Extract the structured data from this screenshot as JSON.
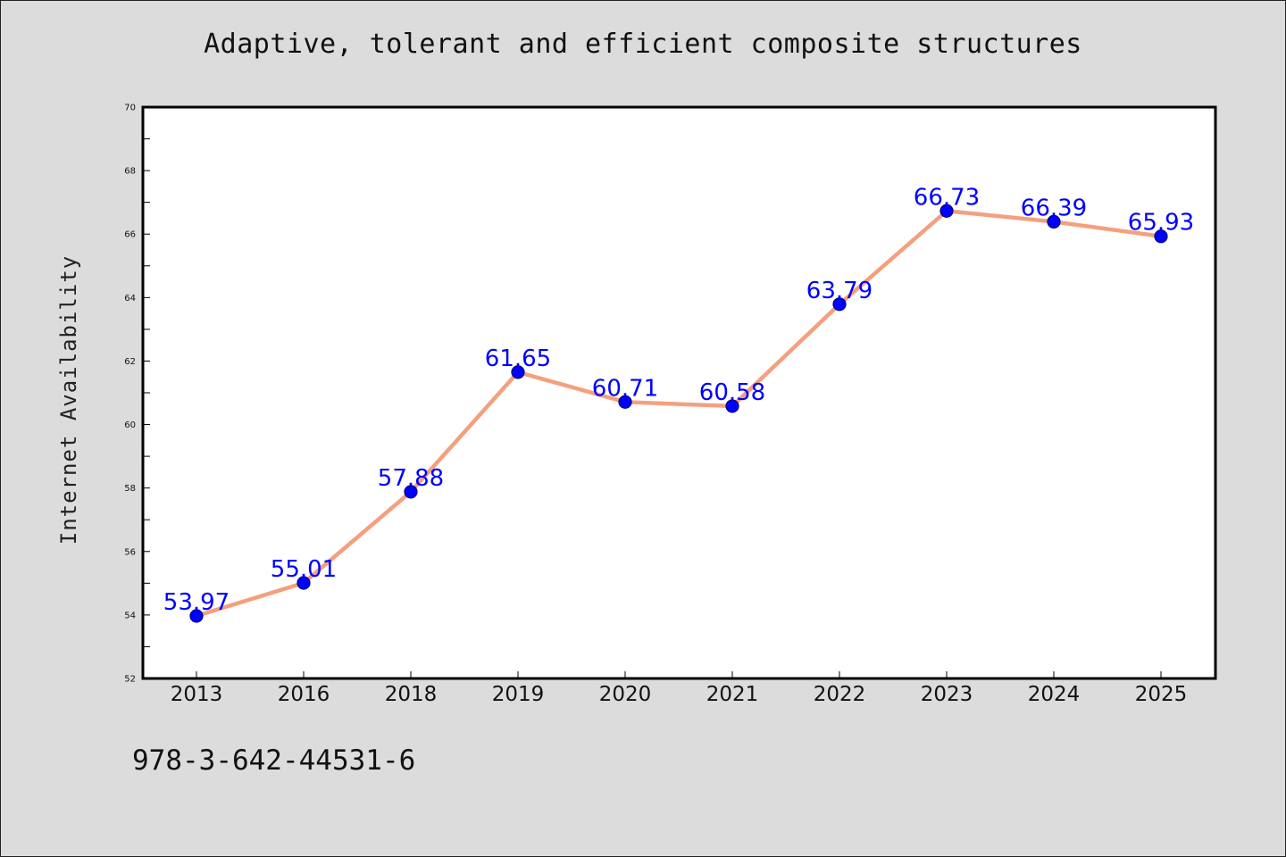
{
  "page": {
    "footer_code": "978-3-642-44531-6"
  },
  "chart_data": {
    "type": "line",
    "title": "Adaptive, tolerant and efficient composite structures",
    "xlabel": "",
    "ylabel": "Internet Availability",
    "categories": [
      "2013",
      "2016",
      "2018",
      "2019",
      "2020",
      "2021",
      "2022",
      "2023",
      "2024",
      "2025"
    ],
    "series": [
      {
        "values": [
          53.97,
          55.01,
          57.88,
          61.65,
          60.71,
          60.58,
          63.79,
          66.73,
          66.39,
          65.93
        ],
        "labels": [
          "53.97",
          "55.01",
          "57.88",
          "61.65",
          "60.71",
          "60.58",
          "63.79",
          "66.73",
          "66.39",
          "65.93"
        ]
      }
    ],
    "ylim": [
      52,
      70
    ],
    "yticks": [
      52,
      54,
      56,
      58,
      60,
      62,
      64,
      66,
      68,
      70
    ],
    "grid": false,
    "legend": "none",
    "colors": {
      "line": "#f4a07e",
      "marker": "#0000ff",
      "marker_edge": "#000080",
      "data_label": "#0000ff",
      "plot_background": "#ffffff",
      "page_background": "#dcdcdc"
    }
  }
}
